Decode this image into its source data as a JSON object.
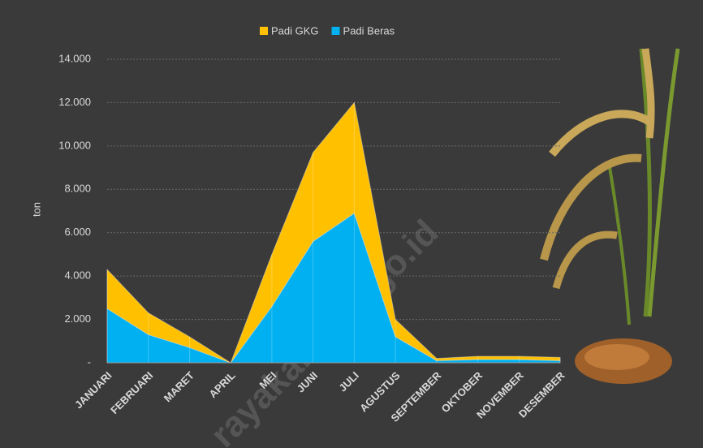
{
  "chart_data": {
    "type": "stacked-area",
    "categories": [
      "JANUARI",
      "FEBRUARI",
      "MARET",
      "APRIL",
      "MEI",
      "JUNI",
      "JULI",
      "AGUSTUS",
      "SEPTEMBER",
      "OKTOBER",
      "NOVEMBER",
      "DESEMBER"
    ],
    "series": [
      {
        "name": "Padi GKG",
        "color": "#ffc000",
        "values": [
          1800,
          1000,
          500,
          0,
          2400,
          4100,
          5100,
          800,
          100,
          150,
          150,
          150
        ]
      },
      {
        "name": "Padi Beras",
        "color": "#00b0f0",
        "values": [
          2500,
          1300,
          700,
          0,
          2600,
          5600,
          6900,
          1200,
          100,
          150,
          150,
          100
        ]
      }
    ],
    "y_label": "ton",
    "ylim": [
      0,
      14000
    ],
    "yticks": [
      {
        "value": 0,
        "label": "-"
      },
      {
        "value": 2000,
        "label": "2.000"
      },
      {
        "value": 4000,
        "label": "4.000"
      },
      {
        "value": 6000,
        "label": "6.000"
      },
      {
        "value": 8000,
        "label": "8.000"
      },
      {
        "value": 10000,
        "label": "10.000"
      },
      {
        "value": 12000,
        "label": "12.000"
      },
      {
        "value": 14000,
        "label": "14.000"
      }
    ],
    "grid": true,
    "legend": "top",
    "watermark": "rayakab.bps.go.id"
  }
}
